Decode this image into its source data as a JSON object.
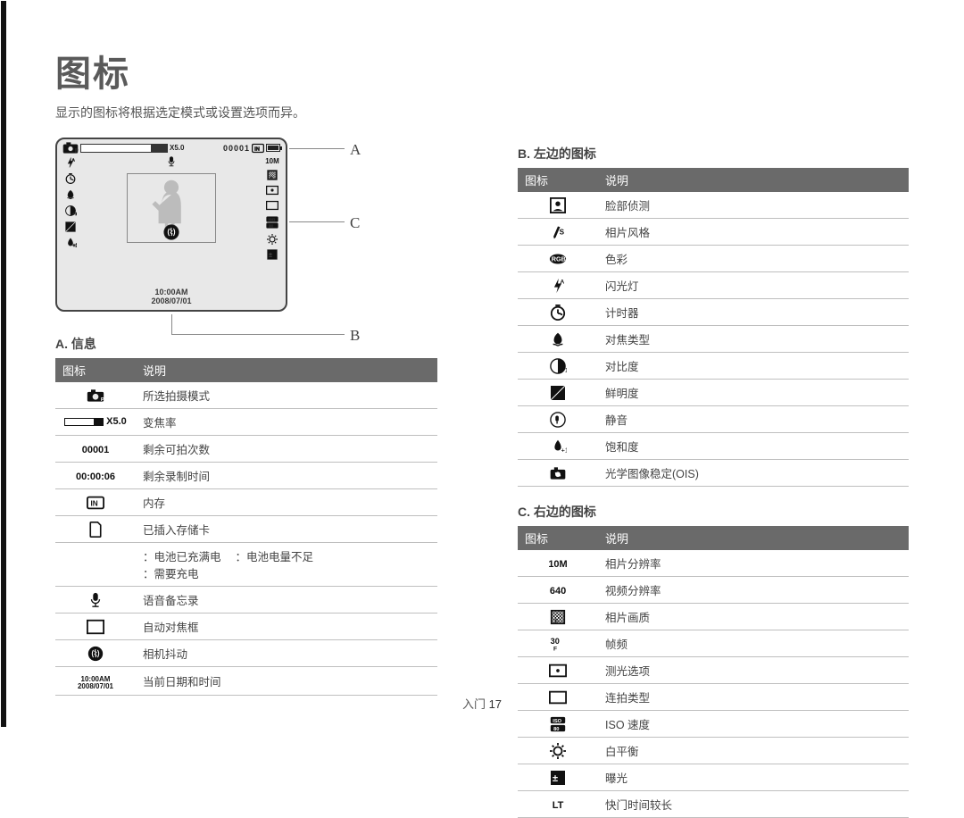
{
  "title": "图标",
  "subtitle": "显示的图标将根据选定模式或设置选项而异。",
  "label_a": "A",
  "label_b": "B",
  "label_c": "C",
  "lcd": {
    "zoom_text": "X5.0",
    "counter": "00001",
    "time": "10:00AM",
    "date": "2008/07/01"
  },
  "section_a": {
    "heading": "A. 信息",
    "col_icon": "图标",
    "col_desc": "说明",
    "rows": [
      {
        "icon": "mode",
        "desc": "所选拍摄模式"
      },
      {
        "icon": "zoom",
        "label": "X5.0",
        "desc": "变焦率"
      },
      {
        "icon": "text",
        "label": "00001",
        "desc": "剩余可拍次数"
      },
      {
        "icon": "text",
        "label": "00:00:06",
        "desc": "剩余录制时间"
      },
      {
        "icon": "intmem",
        "desc": "内存"
      },
      {
        "icon": "card",
        "desc": "已插入存储卡"
      },
      {
        "icon": "battery",
        "desc_html": "：电池已充满电　　：电池电量不足\n：需要充电"
      },
      {
        "icon": "mic",
        "desc": "语音备忘录"
      },
      {
        "icon": "afframe",
        "desc": "自动对焦框"
      },
      {
        "icon": "shake",
        "desc": "相机抖动"
      },
      {
        "icon": "datetime",
        "label": "10:00AM\n2008/07/01",
        "desc": "当前日期和时间"
      }
    ]
  },
  "section_b": {
    "heading": "B. 左边的图标",
    "col_icon": "图标",
    "col_desc": "说明",
    "rows": [
      {
        "icon": "face",
        "desc": "脸部侦测"
      },
      {
        "icon": "style",
        "desc": "相片风格"
      },
      {
        "icon": "color",
        "desc": "色彩"
      },
      {
        "icon": "flash",
        "desc": "闪光灯"
      },
      {
        "icon": "timer",
        "desc": "计时器"
      },
      {
        "icon": "macro",
        "desc": "对焦类型"
      },
      {
        "icon": "contrast",
        "desc": "对比度"
      },
      {
        "icon": "sharp",
        "desc": "鲜明度"
      },
      {
        "icon": "mute",
        "desc": "静音"
      },
      {
        "icon": "sat",
        "desc": "饱和度"
      },
      {
        "icon": "ois",
        "desc": "光学图像稳定(OIS)"
      }
    ]
  },
  "section_c": {
    "heading": "C. 右边的图标",
    "col_icon": "图标",
    "col_desc": "说明",
    "rows": [
      {
        "icon": "res",
        "label": "10M",
        "desc": "相片分辨率"
      },
      {
        "icon": "text",
        "label": "640",
        "desc": "视频分辨率"
      },
      {
        "icon": "quality",
        "desc": "相片画质"
      },
      {
        "icon": "fps",
        "label": "30",
        "desc": "帧频"
      },
      {
        "icon": "meter",
        "desc": "测光选项"
      },
      {
        "icon": "drive",
        "desc": "连拍类型"
      },
      {
        "icon": "iso",
        "desc": "ISO 速度"
      },
      {
        "icon": "wb",
        "desc": "白平衡"
      },
      {
        "icon": "ev",
        "desc": "曝光"
      },
      {
        "icon": "text",
        "label": "LT",
        "desc": "快门时间较长"
      }
    ]
  },
  "footer": {
    "section": "入门",
    "page": "17"
  },
  "colors": {
    "header_bg": "#6a6a6a",
    "border": "#bfbfbf",
    "text": "#444444"
  }
}
